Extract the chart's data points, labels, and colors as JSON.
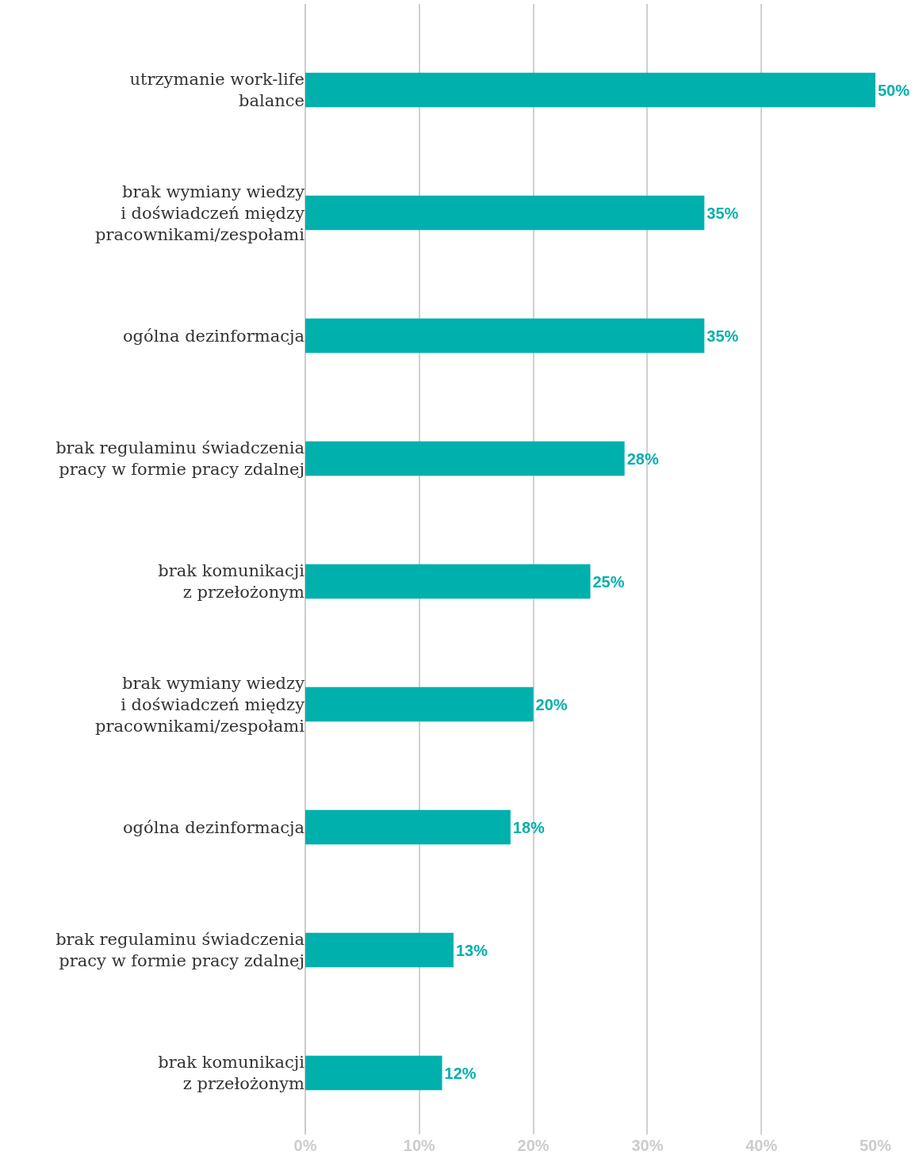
{
  "chart_data": {
    "type": "bar",
    "orientation": "horizontal",
    "categories": [
      "utrzymanie work-life\nbalance",
      "brak wymiany wiedzy\ni doświadczeń między\npracownikami/zespołami",
      "ogólna dezinformacja",
      "brak regulaminu świadczenia\npracy w formie pracy zdalnej",
      "brak komunikacji\nz przełożonym",
      "brak wymiany wiedzy\ni doświadczeń między\npracownikami/zespołami",
      "ogólna dezinformacja",
      "brak regulaminu świadczenia\npracy w formie pracy zdalnej",
      "brak komunikacji\nz przełożonym"
    ],
    "values": [
      50,
      35,
      35,
      28,
      25,
      20,
      18,
      13,
      12
    ],
    "color": "#00b0ac",
    "xlim": [
      0,
      50
    ],
    "xticks": [
      {
        "value": 0,
        "label": "0%"
      },
      {
        "value": 10,
        "label": "10%"
      },
      {
        "value": 20,
        "label": "20%"
      },
      {
        "value": 30,
        "label": "30%"
      },
      {
        "value": 40,
        "label": "40%"
      },
      {
        "value": 50,
        "label": "50%"
      }
    ],
    "value_labels": [
      "50%",
      "35%",
      "35%",
      "28%",
      "25%",
      "20%",
      "18%",
      "13%",
      "12%"
    ],
    "grid": "x"
  }
}
